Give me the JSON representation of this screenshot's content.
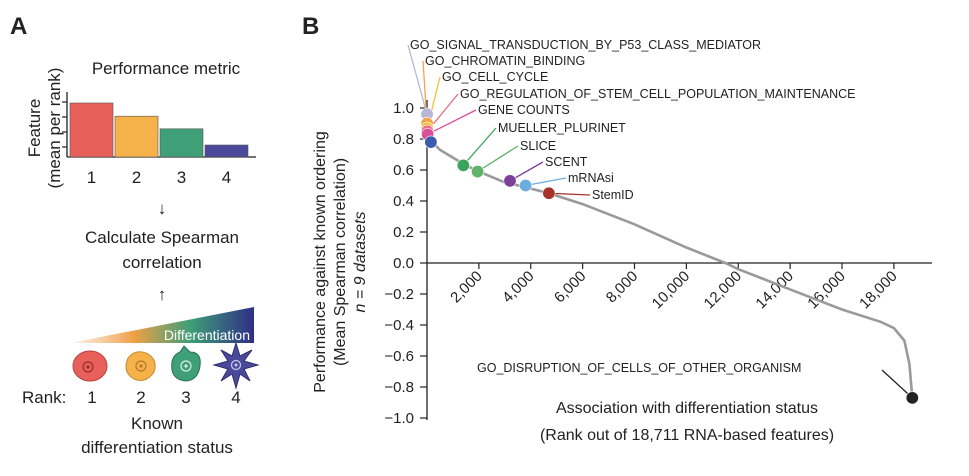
{
  "panel_a": {
    "letter": "A",
    "title": "Performance metric",
    "ylabel_line1": "Feature",
    "ylabel_line2": "(mean per rank)",
    "bars": [
      {
        "rank": "1",
        "value": 0.9,
        "color": "#e8605a"
      },
      {
        "rank": "2",
        "value": 0.68,
        "color": "#f5b14a"
      },
      {
        "rank": "3",
        "value": 0.47,
        "color": "#3f9f77"
      },
      {
        "rank": "4",
        "value": 0.2,
        "color": "#4b4a9a"
      }
    ],
    "step_line1": "Calculate Spearman",
    "step_line2": "correlation",
    "arrow_down": "↓",
    "arrow_up": "↑",
    "gradient_label": "Differentiation",
    "rank_prefix": "Rank:",
    "ranks": [
      "1",
      "2",
      "3",
      "4"
    ],
    "cell_colors": [
      "#e8605a",
      "#f5b14a",
      "#3f9f77",
      "#4b4a9a"
    ],
    "known_line1": "Known",
    "known_line2": "differentiation status"
  },
  "panel_b": {
    "letter": "B",
    "ylabel_line1": "Performance against known ordering",
    "ylabel_line2": "(Mean Spearman correlation)",
    "ylabel_line3": "n = 9 datasets",
    "xlabel_line1": "Association with differentiation status",
    "xlabel_line2": "(Rank out of 18,711 RNA-based features)"
  },
  "chart_data": {
    "type": "line",
    "title": "",
    "xlabel": "Association with differentiation status (Rank out of 18,711 RNA-based features)",
    "ylabel": "Performance against known ordering (Mean Spearman correlation) n = 9 datasets",
    "xlim": [
      0,
      19200
    ],
    "ylim": [
      -1.0,
      1.0
    ],
    "x_ticks": [
      2000,
      4000,
      6000,
      8000,
      10000,
      12000,
      14000,
      16000,
      18000
    ],
    "x_tick_labels": [
      "2,000",
      "4,000",
      "6,000",
      "8,000",
      "10,000",
      "12,000",
      "14,000",
      "16,000",
      "18,000"
    ],
    "y_ticks": [
      -1.0,
      -0.8,
      -0.6,
      -0.4,
      -0.2,
      0.0,
      0.2,
      0.4,
      0.6,
      0.8,
      1.0
    ],
    "y_tick_labels": [
      "−1.0",
      "−0.8",
      "−0.6",
      "−0.4",
      "−0.2",
      "0.0",
      "0.2",
      "0.4",
      "0.6",
      "0.8",
      "1.0"
    ],
    "curve": {
      "name": "RNA-based features",
      "color": "#9a9a9a",
      "x": [
        1,
        150,
        500,
        1000,
        1500,
        2000,
        3000,
        3800,
        4000,
        4700,
        6000,
        8000,
        10000,
        11500,
        12000,
        14000,
        16000,
        17500,
        18000,
        18400,
        18600,
        18711
      ],
      "y": [
        0.98,
        0.79,
        0.73,
        0.68,
        0.63,
        0.59,
        0.52,
        0.49,
        0.48,
        0.45,
        0.38,
        0.25,
        0.1,
        0.0,
        -0.04,
        -0.17,
        -0.3,
        -0.38,
        -0.42,
        -0.5,
        -0.65,
        -0.87
      ]
    },
    "highlighted_points": [
      {
        "label": "GO_SIGNAL_TRANSDUCTION_BY_P53_CLASS_MEDIATOR",
        "x": 1,
        "y": 0.96,
        "color": "#b7b7d6"
      },
      {
        "label": "GO_CHROMATIN_BINDING",
        "x": 5,
        "y": 0.9,
        "color": "#f3a24a"
      },
      {
        "label": "GO_CELL_CYCLE",
        "x": 10,
        "y": 0.87,
        "color": "#f0c23a"
      },
      {
        "label": "GO_REGULATION_OF_STEM_CELL_POPULATION_MAINTENANCE",
        "x": 15,
        "y": 0.85,
        "color": "#ea6a86"
      },
      {
        "label": "GENE COUNTS",
        "x": 25,
        "y": 0.83,
        "color": "#d94f9a"
      },
      {
        "label": "",
        "x": 150,
        "y": 0.78,
        "color": "#3d5bab"
      },
      {
        "label": "MUELLER_PLURINET",
        "x": 1400,
        "y": 0.63,
        "color": "#3aa55a"
      },
      {
        "label": "SLICE",
        "x": 1950,
        "y": 0.59,
        "color": "#62b36a"
      },
      {
        "label": "SCENT",
        "x": 3200,
        "y": 0.53,
        "color": "#7b3f9c"
      },
      {
        "label": "mRNAsi",
        "x": 3800,
        "y": 0.5,
        "color": "#6aaee0"
      },
      {
        "label": "StemID",
        "x": 4700,
        "y": 0.45,
        "color": "#a8322b"
      },
      {
        "label": "GO_DISRUPTION_OF_CELLS_OF_OTHER_ORGANISM",
        "x": 18711,
        "y": -0.87,
        "color": "#222222"
      }
    ]
  }
}
